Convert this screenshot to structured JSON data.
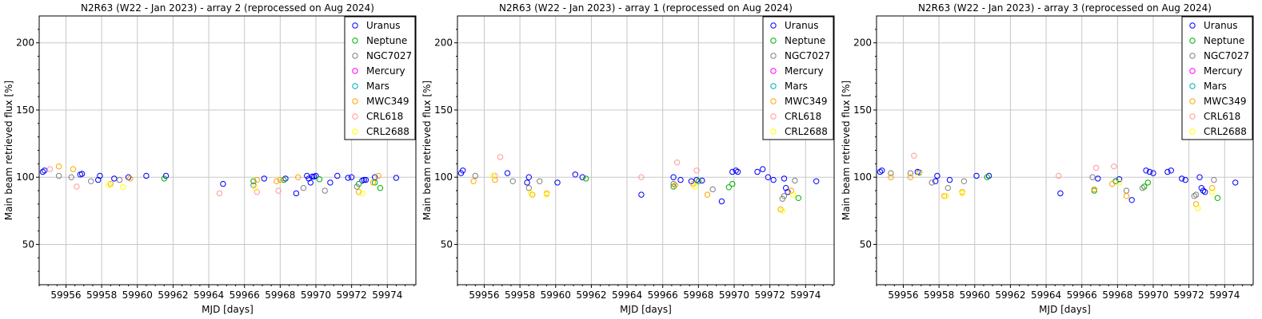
{
  "chart_data": [
    {
      "type": "scatter",
      "title": "N2R63 (W22 - Jan 2023) - array 2 (reprocessed on Aug 2024)",
      "xlabel": "MJD [days]",
      "ylabel": "Main beam retrieved flux [%]",
      "xlim": [
        59954.5,
        59975.6
      ],
      "ylim": [
        20,
        220
      ],
      "xticks": [
        59956,
        59958,
        59960,
        59962,
        59964,
        59966,
        59968,
        59970,
        59972,
        59974
      ],
      "yticks": [
        50,
        100,
        150,
        200
      ],
      "grid": true,
      "legend": "top-right",
      "series": [
        {
          "name": "Uranus",
          "color": "#0000ff",
          "points": [
            [
              59954.7,
              104
            ],
            [
              59954.8,
              105
            ],
            [
              59956.8,
              102
            ],
            [
              59956.9,
              102.5
            ],
            [
              59957.8,
              98
            ],
            [
              59957.9,
              101
            ],
            [
              59958.7,
              99
            ],
            [
              59959.5,
              100
            ],
            [
              59960.5,
              101
            ],
            [
              59961.6,
              101
            ],
            [
              59964.8,
              95
            ],
            [
              59967.1,
              99
            ],
            [
              59968.3,
              99
            ],
            [
              59968.9,
              88
            ],
            [
              59969.5,
              101
            ],
            [
              59969.6,
              99
            ],
            [
              59969.7,
              96
            ],
            [
              59969.8,
              100.5
            ],
            [
              59969.9,
              100.5
            ],
            [
              59970.0,
              101
            ],
            [
              59970.8,
              96
            ],
            [
              59971.2,
              101
            ],
            [
              59971.8,
              99.5
            ],
            [
              59972.0,
              100
            ],
            [
              59972.6,
              97.5
            ],
            [
              59972.7,
              98
            ],
            [
              59972.8,
              98
            ],
            [
              59973.3,
              100
            ],
            [
              59974.5,
              99.5
            ]
          ]
        },
        {
          "name": "Neptune",
          "color": "#00b000",
          "points": [
            [
              59961.5,
              99
            ],
            [
              59966.5,
              97
            ],
            [
              59968.2,
              98
            ],
            [
              59970.2,
              98.5
            ],
            [
              59972.4,
              95
            ],
            [
              59973.3,
              96
            ],
            [
              59973.6,
              92
            ]
          ]
        },
        {
          "name": "NGC7027",
          "color": "#808080",
          "points": [
            [
              59955.6,
              101
            ],
            [
              59956.3,
              100
            ],
            [
              59957.4,
              97
            ],
            [
              59959.0,
              98
            ],
            [
              59966.5,
              94
            ],
            [
              59969.3,
              92
            ],
            [
              59970.5,
              90
            ],
            [
              59972.3,
              93
            ]
          ]
        },
        {
          "name": "Mercury",
          "color": "#ff00ff",
          "points": []
        },
        {
          "name": "Mars",
          "color": "#00b0b0",
          "points": []
        },
        {
          "name": "MWC349",
          "color": "#ffa500",
          "points": [
            [
              59955.6,
              108
            ],
            [
              59956.4,
              106
            ],
            [
              59958.5,
              95
            ],
            [
              59959.6,
              99
            ],
            [
              59966.7,
              98
            ],
            [
              59967.8,
              97
            ],
            [
              59968.0,
              98
            ],
            [
              59969.0,
              100
            ],
            [
              59972.4,
              89
            ],
            [
              59973.2,
              96
            ],
            [
              59973.5,
              101
            ]
          ]
        },
        {
          "name": "CRL618",
          "color": "#ff9999",
          "points": [
            [
              59955.1,
              106
            ],
            [
              59956.6,
              93
            ],
            [
              59964.6,
              88
            ],
            [
              59966.7,
              89
            ],
            [
              59967.9,
              90
            ]
          ]
        },
        {
          "name": "CRL2688",
          "color": "#ffff00",
          "points": [
            [
              59958.4,
              94
            ],
            [
              59959.2,
              92.5
            ],
            [
              59966.6,
              92
            ],
            [
              59972.6,
              88
            ]
          ]
        }
      ]
    },
    {
      "type": "scatter",
      "title": "N2R63 (W22 - Jan 2023) - array 1 (reprocessed on Aug 2024)",
      "xlabel": "MJD [days]",
      "ylabel": "Main beam retrieved flux [%]",
      "xlim": [
        59954.5,
        59975.6
      ],
      "ylim": [
        20,
        220
      ],
      "xticks": [
        59956,
        59958,
        59960,
        59962,
        59964,
        59966,
        59968,
        59970,
        59972,
        59974
      ],
      "yticks": [
        50,
        100,
        150,
        200
      ],
      "grid": true,
      "legend": "top-right",
      "series": [
        {
          "name": "Uranus",
          "color": "#0000ff",
          "points": [
            [
              59954.7,
              103
            ],
            [
              59954.8,
              105
            ],
            [
              59957.3,
              103
            ],
            [
              59958.4,
              96
            ],
            [
              59958.5,
              100
            ],
            [
              59960.1,
              96
            ],
            [
              59961.1,
              102
            ],
            [
              59961.5,
              100
            ],
            [
              59964.8,
              87
            ],
            [
              59966.6,
              100
            ],
            [
              59967.0,
              98
            ],
            [
              59967.6,
              97
            ],
            [
              59967.9,
              98
            ],
            [
              59968.2,
              97.5
            ],
            [
              59969.3,
              82
            ],
            [
              59969.9,
              104
            ],
            [
              59970.1,
              105
            ],
            [
              59970.2,
              104
            ],
            [
              59971.3,
              104
            ],
            [
              59971.6,
              106
            ],
            [
              59971.9,
              100
            ],
            [
              59972.2,
              98
            ],
            [
              59972.8,
              99
            ],
            [
              59972.9,
              92
            ],
            [
              59973.0,
              89
            ],
            [
              59974.6,
              97
            ]
          ]
        },
        {
          "name": "Neptune",
          "color": "#00b000",
          "points": [
            [
              59961.7,
              99
            ],
            [
              59966.6,
              93
            ],
            [
              59968.0,
              97
            ],
            [
              59969.7,
              92.5
            ],
            [
              59969.9,
              95
            ],
            [
              59973.6,
              84.5
            ]
          ]
        },
        {
          "name": "NGC7027",
          "color": "#808080",
          "points": [
            [
              59955.5,
              101
            ],
            [
              59957.6,
              97
            ],
            [
              59958.5,
              92
            ],
            [
              59959.1,
              97
            ],
            [
              59966.6,
              95
            ],
            [
              59968.8,
              91
            ],
            [
              59972.7,
              84
            ],
            [
              59972.8,
              86
            ],
            [
              59973.4,
              97.5
            ]
          ]
        },
        {
          "name": "Mercury",
          "color": "#ff00ff",
          "points": []
        },
        {
          "name": "Mars",
          "color": "#00b0b0",
          "points": []
        },
        {
          "name": "MWC349",
          "color": "#ffa500",
          "points": [
            [
              59955.4,
              97
            ],
            [
              59956.6,
              98
            ],
            [
              59958.7,
              87
            ],
            [
              59959.5,
              88
            ],
            [
              59966.7,
              94
            ],
            [
              59967.7,
              95
            ],
            [
              59968.5,
              87
            ],
            [
              59972.6,
              76
            ],
            [
              59973.2,
              90
            ]
          ]
        },
        {
          "name": "CRL618",
          "color": "#ff9999",
          "points": [
            [
              59956.6,
              101
            ],
            [
              59956.9,
              115
            ],
            [
              59964.8,
              100
            ],
            [
              59966.8,
              111
            ],
            [
              59967.9,
              105
            ]
          ]
        },
        {
          "name": "CRL2688",
          "color": "#ffff00",
          "points": [
            [
              59956.5,
              101
            ],
            [
              59958.6,
              88
            ],
            [
              59959.5,
              87
            ],
            [
              59967.8,
              93
            ],
            [
              59972.7,
              75
            ],
            [
              59973.3,
              87
            ]
          ]
        }
      ]
    },
    {
      "type": "scatter",
      "title": "N2R63 (W22 - Jan 2023) - array 3 (reprocessed on Aug 2024)",
      "xlabel": "MJD [days]",
      "ylabel": "Main beam retrieved flux [%]",
      "xlim": [
        59954.5,
        59975.6
      ],
      "ylim": [
        20,
        220
      ],
      "xticks": [
        59956,
        59958,
        59960,
        59962,
        59964,
        59966,
        59968,
        59970,
        59972,
        59974
      ],
      "yticks": [
        50,
        100,
        150,
        200
      ],
      "grid": true,
      "legend": "top-right",
      "series": [
        {
          "name": "Uranus",
          "color": "#0000ff",
          "points": [
            [
              59954.7,
              104
            ],
            [
              59954.8,
              105
            ],
            [
              59956.8,
              104
            ],
            [
              59956.9,
              103.5
            ],
            [
              59957.8,
              97
            ],
            [
              59957.9,
              101
            ],
            [
              59958.6,
              98
            ],
            [
              59960.1,
              101
            ],
            [
              59960.8,
              101
            ],
            [
              59964.8,
              88
            ],
            [
              59966.9,
              99
            ],
            [
              59967.9,
              97
            ],
            [
              59968.1,
              98.5
            ],
            [
              59968.8,
              83
            ],
            [
              59969.6,
              105
            ],
            [
              59969.8,
              104
            ],
            [
              59970.0,
              103
            ],
            [
              59970.8,
              104
            ],
            [
              59971.0,
              105
            ],
            [
              59971.6,
              99
            ],
            [
              59971.8,
              98
            ],
            [
              59972.6,
              100
            ],
            [
              59972.7,
              92
            ],
            [
              59972.8,
              90
            ],
            [
              59972.9,
              89
            ],
            [
              59974.6,
              96
            ]
          ]
        },
        {
          "name": "Neptune",
          "color": "#00b000",
          "points": [
            [
              59960.7,
              100
            ],
            [
              59966.7,
              90
            ],
            [
              59967.9,
              97
            ],
            [
              59969.5,
              93
            ],
            [
              59969.7,
              96
            ],
            [
              59973.6,
              84.5
            ]
          ]
        },
        {
          "name": "NGC7027",
          "color": "#808080",
          "points": [
            [
              59955.3,
              103
            ],
            [
              59956.4,
              103
            ],
            [
              59957.6,
              96
            ],
            [
              59958.5,
              92
            ],
            [
              59959.4,
              97
            ],
            [
              59966.6,
              100
            ],
            [
              59968.5,
              90
            ],
            [
              59969.4,
              92
            ],
            [
              59972.3,
              86
            ],
            [
              59972.4,
              87
            ],
            [
              59973.4,
              98
            ]
          ]
        },
        {
          "name": "Mercury",
          "color": "#ff00ff",
          "points": []
        },
        {
          "name": "Mars",
          "color": "#00b0b0",
          "points": []
        },
        {
          "name": "MWC349",
          "color": "#ffa500",
          "points": [
            [
              59955.3,
              100
            ],
            [
              59956.4,
              100
            ],
            [
              59958.3,
              86
            ],
            [
              59959.3,
              89
            ],
            [
              59966.7,
              91
            ],
            [
              59967.7,
              95
            ],
            [
              59968.5,
              86
            ],
            [
              59972.4,
              80
            ],
            [
              59973.3,
              92
            ]
          ]
        },
        {
          "name": "CRL618",
          "color": "#ff9999",
          "points": [
            [
              59956.6,
              116
            ],
            [
              59964.7,
              101
            ],
            [
              59966.8,
              107
            ],
            [
              59967.8,
              108
            ]
          ]
        },
        {
          "name": "CRL2688",
          "color": "#ffff00",
          "points": [
            [
              59956.9,
              103
            ],
            [
              59958.4,
              86
            ],
            [
              59959.3,
              88
            ],
            [
              59968.1,
              96
            ],
            [
              59972.5,
              77
            ],
            [
              59973.3,
              89
            ]
          ]
        }
      ]
    }
  ]
}
